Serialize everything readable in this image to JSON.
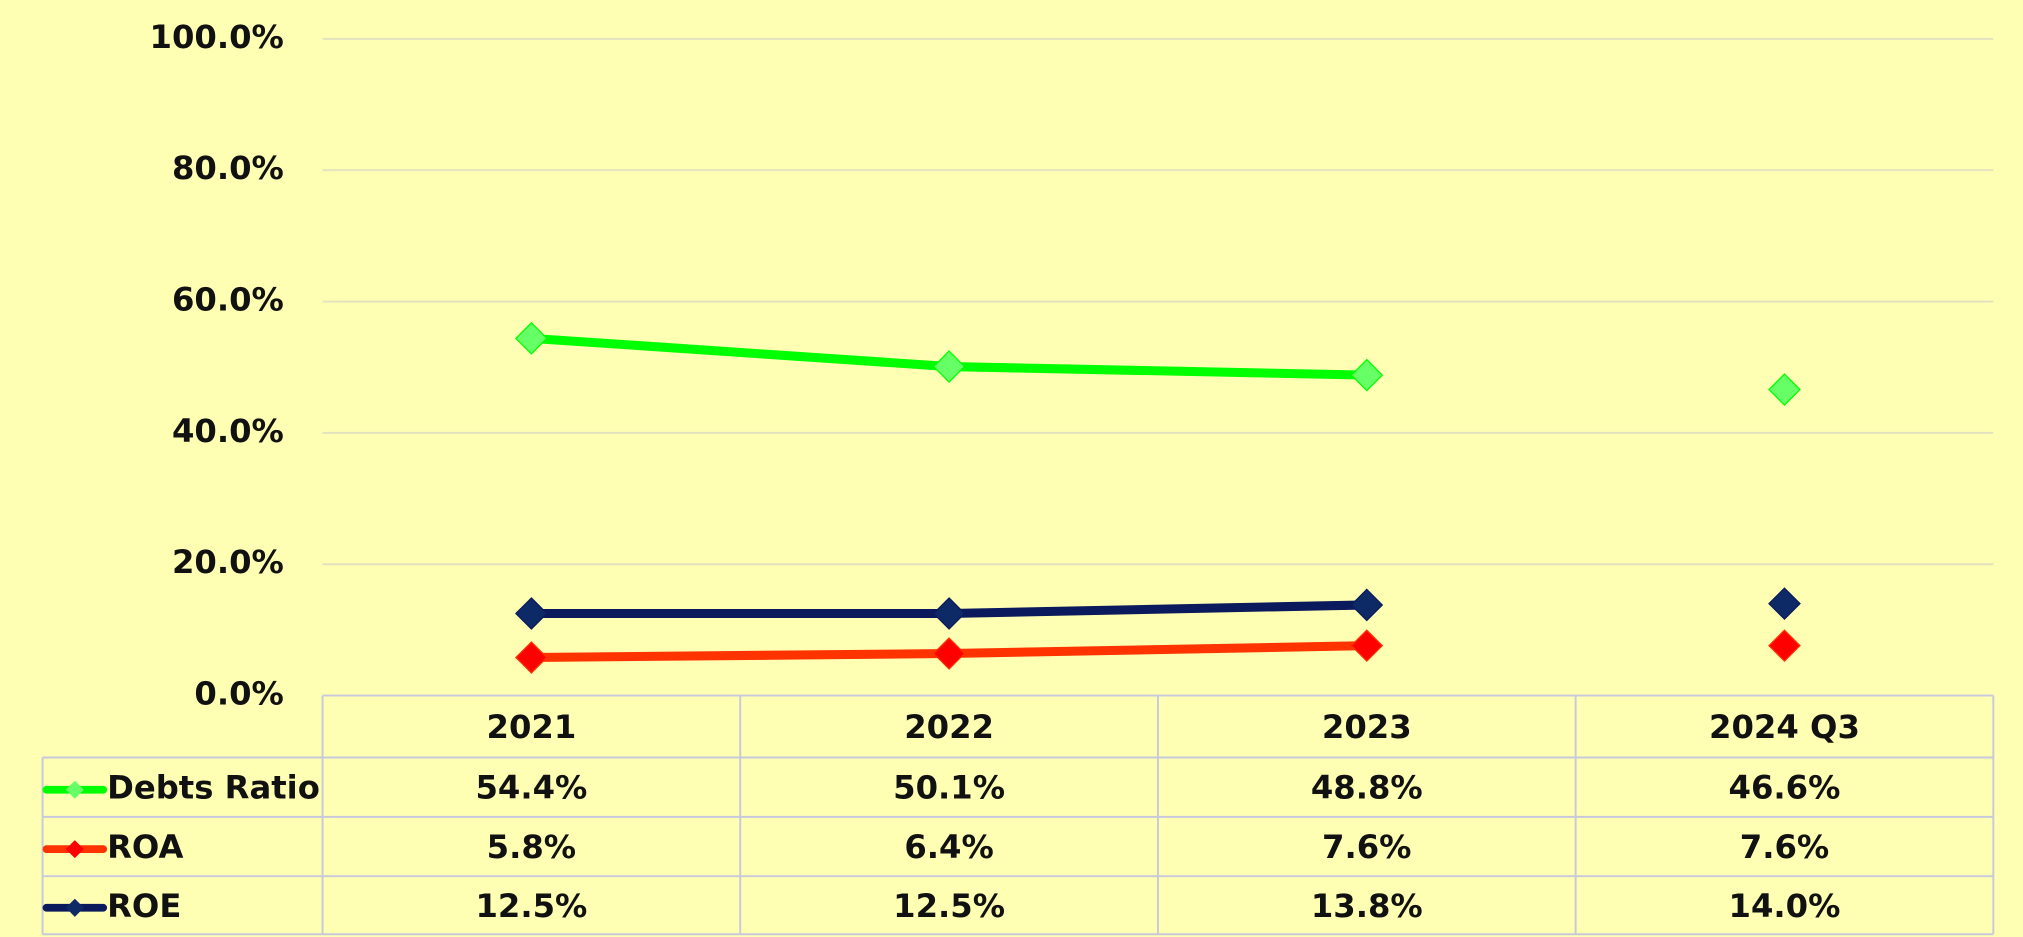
{
  "chart_data": {
    "type": "line",
    "categories": [
      "2021",
      "2022",
      "2023",
      "2024  Q3"
    ],
    "joined": [
      true,
      true,
      true,
      false
    ],
    "series": [
      {
        "name": "Debts Ratio",
        "color": "#00ff00",
        "marker_color": "#66ff66",
        "values": [
          54.4,
          50.1,
          48.8,
          46.6
        ],
        "value_labels": [
          "54.4%",
          "50.1%",
          "48.8%",
          "46.6%"
        ]
      },
      {
        "name": "ROA",
        "color": "#ff3300",
        "marker_color": "#ff0000",
        "values": [
          5.8,
          6.4,
          7.6,
          7.6
        ],
        "value_labels": [
          "5.8%",
          "6.4%",
          "7.6%",
          "7.6%"
        ]
      },
      {
        "name": "ROE",
        "color": "#0a1a5c",
        "marker_color": "#0d2a66",
        "values": [
          12.5,
          12.5,
          13.8,
          14.0
        ],
        "value_labels": [
          "12.5%",
          "12.5%",
          "13.8%",
          "14.0%"
        ]
      }
    ],
    "ylim": [
      0,
      100
    ],
    "yticks": [
      {
        "value": 0,
        "label": "0.0%"
      },
      {
        "value": 20,
        "label": "20.0%"
      },
      {
        "value": 40,
        "label": "40.0%"
      },
      {
        "value": 60,
        "label": "60.0%"
      },
      {
        "value": 80,
        "label": "80.0%"
      },
      {
        "value": 100,
        "label": "100.0%"
      }
    ],
    "grid": true
  }
}
